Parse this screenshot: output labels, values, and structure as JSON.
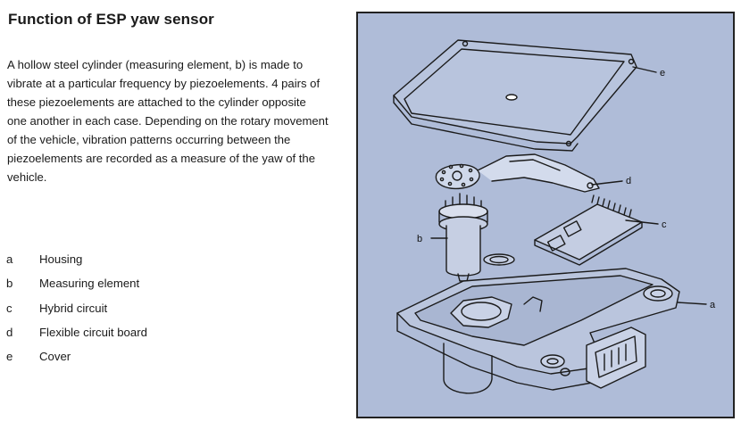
{
  "title": "Function of ESP yaw sensor",
  "description": "A hollow steel cylinder (measuring element, b) is made to vibrate at a particular frequency by piezoelements.  4 pairs of these piezoelements are attached to the cylinder opposite one another in each case.  Depending on the rotary movement of the vehicle, vibration patterns occurring between the piezoelements are recorded as a measure of the yaw of the vehicle.",
  "legend": [
    {
      "key": "a",
      "label": "Housing"
    },
    {
      "key": "b",
      "label": "Measuring element"
    },
    {
      "key": "c",
      "label": "Hybrid circuit"
    },
    {
      "key": "d",
      "label": "Flexible circuit board"
    },
    {
      "key": "e",
      "label": "Cover"
    }
  ],
  "diagram": {
    "background": "#afbcd8",
    "callouts": {
      "a": "a",
      "b": "b",
      "c": "c",
      "d": "d",
      "e": "e"
    }
  }
}
